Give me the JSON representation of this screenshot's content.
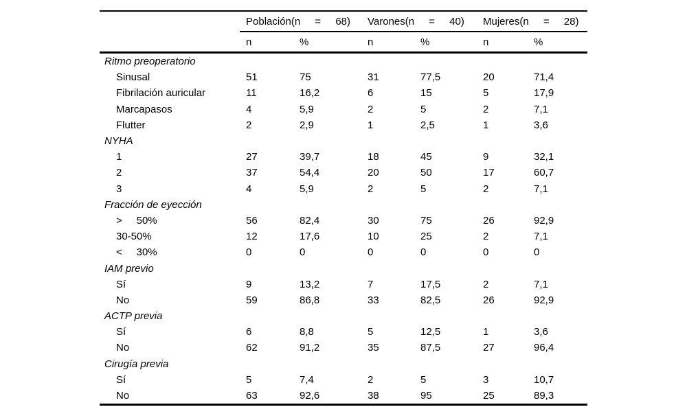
{
  "table": {
    "col_groups": [
      {
        "label": "Población(n = 68)"
      },
      {
        "label": "Varones(n = 40)"
      },
      {
        "label": "Mujeres(n = 28)"
      }
    ],
    "subheaders": [
      "n",
      "%",
      "n",
      "%",
      "n",
      "%"
    ],
    "sections": [
      {
        "header": "Ritmo preoperatorio",
        "rows": [
          {
            "label": "Sinusal",
            "values": [
              "51",
              "75",
              "31",
              "77,5",
              "20",
              "71,4"
            ]
          },
          {
            "label": "Fibrilación auricular",
            "values": [
              "11",
              "16,2",
              "6",
              "15",
              "5",
              "17,9"
            ]
          },
          {
            "label": "Marcapasos",
            "values": [
              "4",
              "5,9",
              "2",
              "5",
              "2",
              "7,1"
            ]
          },
          {
            "label": "Flutter",
            "values": [
              "2",
              "2,9",
              "1",
              "2,5",
              "1",
              "3,6"
            ]
          }
        ]
      },
      {
        "header": "NYHA",
        "rows": [
          {
            "label": "1",
            "values": [
              "27",
              "39,7",
              "18",
              "45",
              "9",
              "32,1"
            ]
          },
          {
            "label": "2",
            "values": [
              "37",
              "54,4",
              "20",
              "50",
              "17",
              "60,7"
            ]
          },
          {
            "label": "3",
            "values": [
              "4",
              "5,9",
              "2",
              "5",
              "2",
              "7,1"
            ]
          }
        ]
      },
      {
        "header": "Fracción de eyección",
        "rows": [
          {
            "label": ">     50%",
            "values": [
              "56",
              "82,4",
              "30",
              "75",
              "26",
              "92,9"
            ]
          },
          {
            "label": "30-50%",
            "values": [
              "12",
              "17,6",
              "10",
              "25",
              "2",
              "7,1"
            ]
          },
          {
            "label": "<     30%",
            "values": [
              "0",
              "0",
              "0",
              "0",
              "0",
              "0"
            ]
          }
        ]
      },
      {
        "header": "IAM previo",
        "rows": [
          {
            "label": "Sí",
            "values": [
              "9",
              "13,2",
              "7",
              "17,5",
              "2",
              "7,1"
            ]
          },
          {
            "label": "No",
            "values": [
              "59",
              "86,8",
              "33",
              "82,5",
              "26",
              "92,9"
            ]
          }
        ]
      },
      {
        "header": "ACTP previa",
        "rows": [
          {
            "label": "Sí",
            "values": [
              "6",
              "8,8",
              "5",
              "12,5",
              "1",
              "3,6"
            ]
          },
          {
            "label": "No",
            "values": [
              "62",
              "91,2",
              "35",
              "87,5",
              "27",
              "96,4"
            ]
          }
        ]
      },
      {
        "header": "Cirugía previa",
        "rows": [
          {
            "label": "Sí",
            "values": [
              "5",
              "7,4",
              "2",
              "5",
              "3",
              "10,7"
            ]
          },
          {
            "label": "No",
            "values": [
              "63",
              "92,6",
              "38",
              "95",
              "25",
              "89,3"
            ]
          }
        ]
      }
    ]
  },
  "colors": {
    "rule": "#000000",
    "text": "#000000",
    "background": "#ffffff"
  }
}
